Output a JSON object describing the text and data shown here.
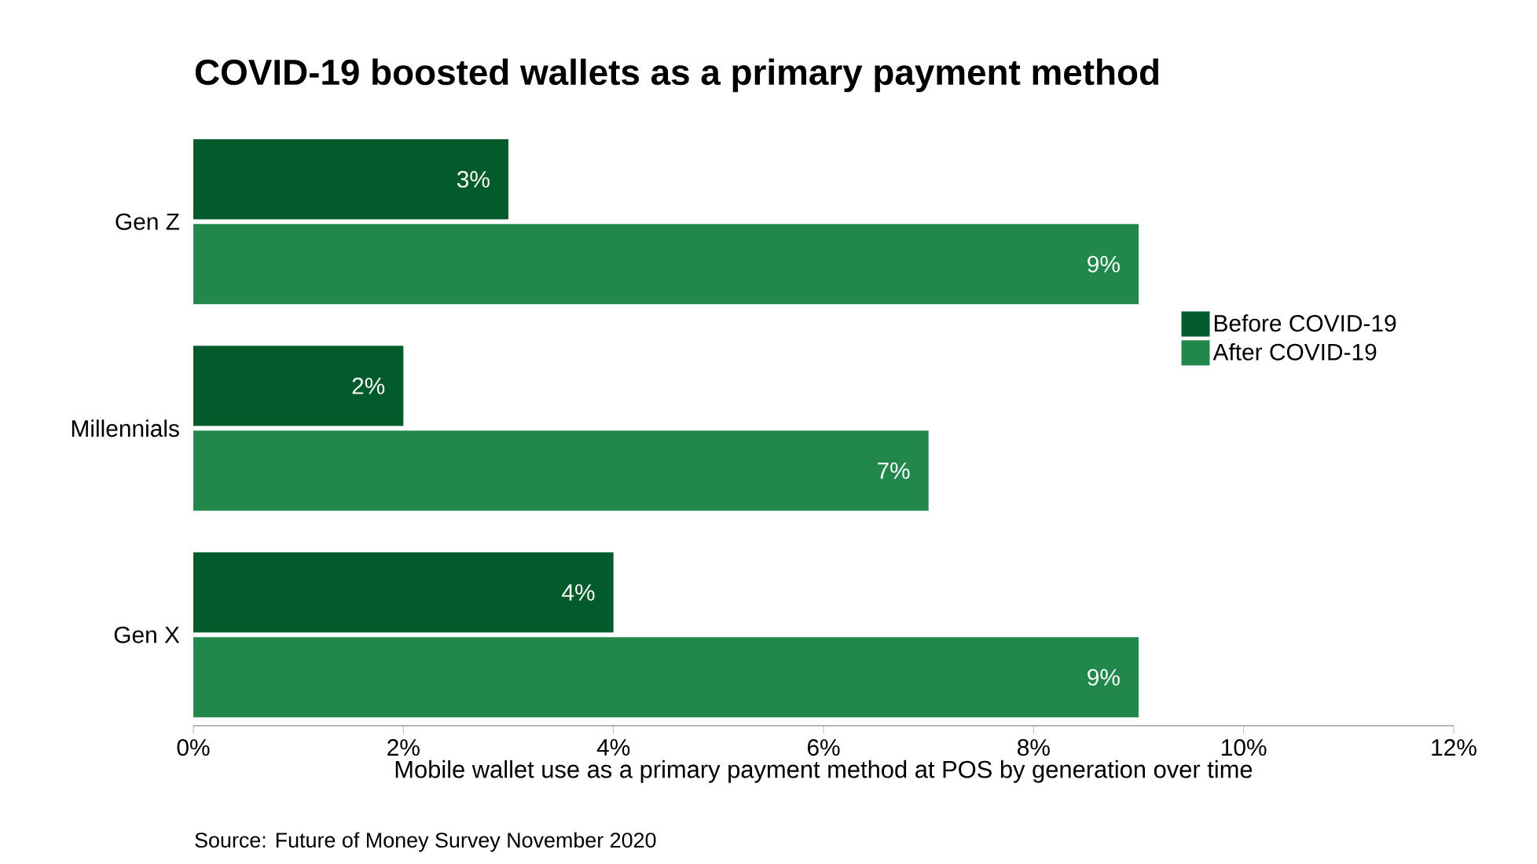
{
  "chart_data": {
    "type": "bar",
    "orientation": "horizontal",
    "title": "COVID-19 boosted wallets as a primary payment method",
    "xlabel": "Mobile wallet use as a primary payment method at POS by generation over time",
    "categories": [
      "Gen Z",
      "Millennials",
      "Gen X"
    ],
    "series": [
      {
        "name": "Before COVID-19",
        "color": "#035a2a",
        "values": [
          3,
          2,
          4
        ],
        "value_labels": [
          "3%",
          "2%",
          "4%"
        ]
      },
      {
        "name": "After COVID-19",
        "color": "#22874a",
        "values": [
          9,
          7,
          9
        ],
        "value_labels": [
          "9%",
          "7%",
          "9%"
        ]
      }
    ],
    "xlim": [
      0,
      12
    ],
    "xticks": [
      {
        "value": 0,
        "label": "0%"
      },
      {
        "value": 2,
        "label": "2%"
      },
      {
        "value": 4,
        "label": "4%"
      },
      {
        "value": 6,
        "label": "6%"
      },
      {
        "value": 8,
        "label": "8%"
      },
      {
        "value": 10,
        "label": "10%"
      },
      {
        "value": 12,
        "label": "12%"
      }
    ],
    "grid": false,
    "legend": "right",
    "annotations": [
      "Source: Future of Money Survey November 2020"
    ]
  }
}
